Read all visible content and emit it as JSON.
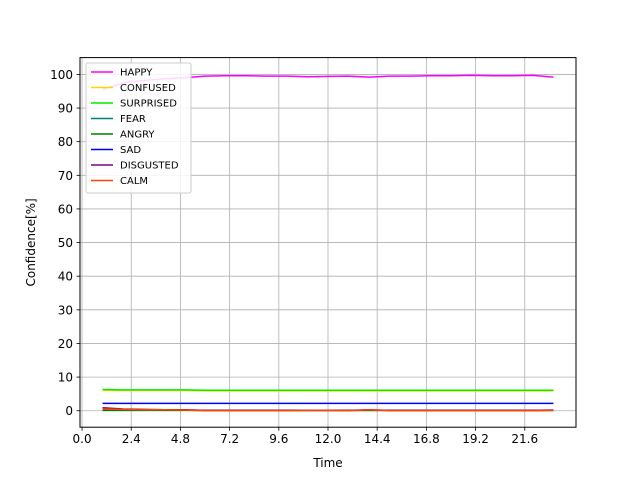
{
  "chart_data": {
    "type": "line",
    "title": "",
    "xlabel": "Time",
    "ylabel": "Confidence[%]",
    "xlim": [
      -0.1,
      24.1
    ],
    "ylim": [
      -4.9,
      105
    ],
    "xticks": [
      0.0,
      2.4,
      4.8,
      7.2,
      9.6,
      12.0,
      14.4,
      16.8,
      19.2,
      21.6
    ],
    "xtick_labels": [
      "0.0",
      "2.4",
      "4.8",
      "7.2",
      "9.6",
      "12.0",
      "14.4",
      "16.8",
      "19.2",
      "21.6"
    ],
    "yticks": [
      0,
      10,
      20,
      30,
      40,
      50,
      60,
      70,
      80,
      90,
      100
    ],
    "ytick_labels": [
      "0",
      "10",
      "20",
      "30",
      "40",
      "50",
      "60",
      "70",
      "80",
      "90",
      "100"
    ],
    "grid": true,
    "legend_position": "top-left",
    "x": [
      1,
      2,
      3,
      4,
      5,
      6,
      7,
      8,
      9,
      10,
      11,
      12,
      13,
      14,
      15,
      16,
      17,
      18,
      19,
      20,
      21,
      22,
      23
    ],
    "series": [
      {
        "name": "HAPPY",
        "color": "#ff00ff",
        "values": [
          95.5,
          97.5,
          98.2,
          98.7,
          99.0,
          99.5,
          99.6,
          99.6,
          99.5,
          99.5,
          99.3,
          99.4,
          99.5,
          99.2,
          99.5,
          99.5,
          99.6,
          99.6,
          99.7,
          99.6,
          99.6,
          99.7,
          99.2
        ]
      },
      {
        "name": "CONFUSED",
        "color": "#ffd700",
        "values": [
          6.0,
          6.0,
          6.0,
          6.0,
          6.0,
          5.9,
          5.9,
          5.9,
          5.9,
          5.9,
          5.9,
          5.9,
          5.9,
          5.9,
          5.9,
          5.9,
          5.9,
          5.9,
          5.9,
          5.9,
          5.9,
          5.9,
          5.9
        ]
      },
      {
        "name": "SURPRISED",
        "color": "#00ee00",
        "values": [
          6.3,
          6.2,
          6.2,
          6.2,
          6.2,
          6.1,
          6.1,
          6.1,
          6.1,
          6.1,
          6.1,
          6.1,
          6.1,
          6.1,
          6.1,
          6.1,
          6.1,
          6.1,
          6.1,
          6.1,
          6.1,
          6.1,
          6.1
        ]
      },
      {
        "name": "FEAR",
        "color": "#008080",
        "values": [
          0.2,
          0.2,
          0.2,
          0.2,
          0.2,
          0.1,
          0.1,
          0.1,
          0.1,
          0.1,
          0.1,
          0.1,
          0.1,
          0.1,
          0.1,
          0.1,
          0.1,
          0.1,
          0.1,
          0.1,
          0.1,
          0.1,
          0.1
        ]
      },
      {
        "name": "ANGRY",
        "color": "#008000",
        "values": [
          0.1,
          0.1,
          0.1,
          0.1,
          0.1,
          0.1,
          0.1,
          0.1,
          0.1,
          0.1,
          0.1,
          0.1,
          0.1,
          0.1,
          0.1,
          0.1,
          0.1,
          0.1,
          0.1,
          0.1,
          0.1,
          0.1,
          0.1
        ]
      },
      {
        "name": "SAD",
        "color": "#0000ff",
        "values": [
          2.2,
          2.2,
          2.2,
          2.2,
          2.2,
          2.2,
          2.2,
          2.2,
          2.2,
          2.2,
          2.2,
          2.2,
          2.2,
          2.2,
          2.2,
          2.2,
          2.2,
          2.2,
          2.2,
          2.2,
          2.2,
          2.2,
          2.2
        ]
      },
      {
        "name": "DISGUSTED",
        "color": "#800080",
        "values": [
          0.9,
          0.5,
          0.4,
          0.3,
          0.3,
          0.1,
          0.1,
          0.1,
          0.1,
          0.1,
          0.1,
          0.1,
          0.1,
          0.3,
          0.1,
          0.1,
          0.1,
          0.1,
          0.1,
          0.1,
          0.1,
          0.1,
          0.2
        ]
      },
      {
        "name": "CALM",
        "color": "#ff4500",
        "values": [
          0.5,
          0.4,
          0.3,
          0.3,
          0.2,
          0.0,
          0.0,
          0.0,
          0.0,
          0.0,
          0.1,
          0.1,
          0.0,
          0.3,
          0.0,
          0.0,
          0.0,
          0.0,
          0.0,
          0.0,
          0.0,
          0.0,
          0.1
        ]
      }
    ]
  }
}
